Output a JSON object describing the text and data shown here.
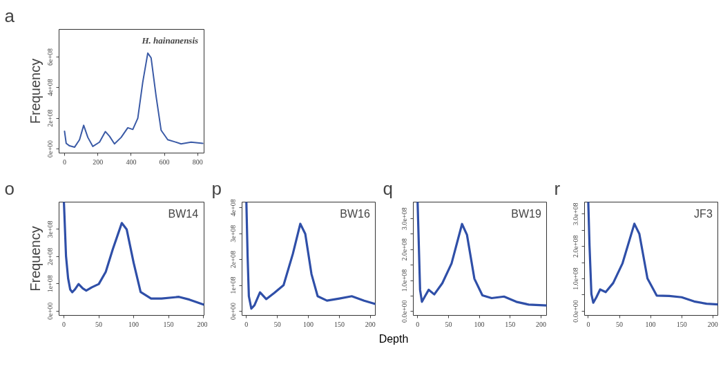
{
  "chart_data": [
    {
      "type": "line",
      "title": "a",
      "ylabel": "Frequency",
      "annotations": [
        "H. hainanensis"
      ],
      "grid": false,
      "xlim": [
        -33,
        838
      ],
      "ylim": [
        -27000000.0,
        780000000.0
      ],
      "xticks": [
        0,
        200,
        400,
        600,
        800
      ],
      "yticks": [
        {
          "value": 0,
          "label": "0e+00"
        },
        {
          "value": 200000000.0,
          "label": "2e+08"
        },
        {
          "value": 400000000.0,
          "label": "4e+08"
        },
        {
          "value": 600000000.0,
          "label": "6e+08"
        }
      ],
      "x": [
        0,
        10,
        30,
        60,
        90,
        115,
        140,
        170,
        210,
        245,
        270,
        300,
        340,
        380,
        410,
        440,
        470,
        500,
        520,
        550,
        580,
        620,
        660,
        700,
        760,
        830
      ],
      "series": [
        {
          "color": "#3a5aa6",
          "values": [
            115000000.0,
            36000000.0,
            20000000.0,
            11000000.0,
            60000000.0,
            154000000.0,
            75000000.0,
            16000000.0,
            44000000.0,
            113000000.0,
            83000000.0,
            33000000.0,
            75000000.0,
            138000000.0,
            127000000.0,
            200000000.0,
            437000000.0,
            625000000.0,
            594000000.0,
            343000000.0,
            122000000.0,
            60000000.0,
            47000000.0,
            33000000.0,
            44000000.0,
            36000000.0
          ]
        }
      ]
    },
    {
      "type": "line",
      "title": "o",
      "ylabel": "Frequency",
      "annotations": [
        "BW14"
      ],
      "grid": false,
      "xlim": [
        -7,
        201
      ],
      "ylim": [
        -16000000.0,
        400000000.0
      ],
      "xticks": [
        0,
        50,
        100,
        150,
        200
      ],
      "yticks": [
        {
          "value": 0,
          "label": "0e+00"
        },
        {
          "value": 100000000.0,
          "label": "1e+08"
        },
        {
          "value": 200000000.0,
          "label": "2e+08"
        },
        {
          "value": 300000000.0,
          "label": "3e+08"
        }
      ],
      "x": [
        0,
        3,
        6,
        9,
        12,
        16,
        21,
        27,
        32,
        40,
        50,
        60,
        70,
        83,
        90,
        100,
        110,
        125,
        140,
        165,
        180,
        200
      ],
      "series": [
        {
          "color": "#2f4fa8",
          "values": [
            400000000.0,
            202000000.0,
            120000000.0,
            79000000.0,
            69000000.0,
            80000000.0,
            99000000.0,
            83000000.0,
            75000000.0,
            87000000.0,
            99000000.0,
            144000000.0,
            226000000.0,
            323000000.0,
            300000000.0,
            177000000.0,
            70000000.0,
            46000000.0,
            46000000.0,
            52000000.0,
            42000000.0,
            24000000.0
          ]
        }
      ]
    },
    {
      "type": "line",
      "title": "p",
      "annotations": [
        "BW16"
      ],
      "grid": false,
      "xlim": [
        -7,
        208
      ],
      "ylim": [
        -16000000.0,
        422000000.0
      ],
      "xticks": [
        0,
        50,
        100,
        150,
        200
      ],
      "yticks": [
        {
          "value": 0,
          "label": "0e+00"
        },
        {
          "value": 100000000.0,
          "label": "1e+08"
        },
        {
          "value": 200000000.0,
          "label": "2e+08"
        },
        {
          "value": 300000000.0,
          "label": "3e+08"
        },
        {
          "value": 400000000.0,
          "label": "4e+08"
        }
      ],
      "x": [
        0,
        2,
        4,
        8,
        13,
        22,
        32,
        45,
        60,
        75,
        87,
        95,
        105,
        115,
        130,
        150,
        170,
        190,
        208
      ],
      "series": [
        {
          "color": "#2f4fa8",
          "values": [
            422000000.0,
            213000000.0,
            58000000.0,
            10000000.0,
            23000000.0,
            73000000.0,
            47000000.0,
            71000000.0,
            101000000.0,
            222000000.0,
            338000000.0,
            299000000.0,
            144000000.0,
            58000000.0,
            41000000.0,
            49000000.0,
            58000000.0,
            41000000.0,
            28000000.0
          ]
        }
      ]
    },
    {
      "type": "line",
      "title": "q",
      "xlabel": "Depth",
      "annotations": [
        "BW19"
      ],
      "grid": false,
      "xlim": [
        -7,
        209
      ],
      "ylim": [
        -13000000.0,
        354000000.0
      ],
      "xticks": [
        0,
        50,
        100,
        150,
        200
      ],
      "yticks": [
        {
          "value": 0,
          "label": "0.0e+00"
        },
        {
          "value": 50000000.0,
          "label": null
        },
        {
          "value": 100000000.0,
          "label": "1.0e+08"
        },
        {
          "value": 150000000.0,
          "label": null
        },
        {
          "value": 200000000.0,
          "label": "2.0e+08"
        },
        {
          "value": 250000000.0,
          "label": null
        },
        {
          "value": 300000000.0,
          "label": "3.0e+08"
        }
      ],
      "x": [
        0,
        2,
        4,
        7,
        12,
        18,
        27,
        40,
        55,
        72,
        80,
        92,
        105,
        120,
        140,
        160,
        180,
        209
      ],
      "series": [
        {
          "color": "#2f4fa8",
          "values": [
            354000000.0,
            212000000.0,
            70000000.0,
            31000000.0,
            49000000.0,
            70000000.0,
            55000000.0,
            91000000.0,
            155000000.0,
            283000000.0,
            248000000.0,
            106000000.0,
            52000000.0,
            43000000.0,
            48000000.0,
            31000000.0,
            22000000.0,
            19000000.0
          ]
        }
      ]
    },
    {
      "type": "line",
      "title": "r",
      "annotations": [
        "JF3"
      ],
      "grid": false,
      "xlim": [
        -6,
        208
      ],
      "ylim": [
        -13000000.0,
        337000000.0
      ],
      "xticks": [
        0,
        50,
        100,
        150,
        200
      ],
      "yticks": [
        {
          "value": 0,
          "label": "0.0e+00"
        },
        {
          "value": 50000000.0,
          "label": null
        },
        {
          "value": 100000000.0,
          "label": "1.0e+08"
        },
        {
          "value": 150000000.0,
          "label": null
        },
        {
          "value": 200000000.0,
          "label": "2.0e+08"
        },
        {
          "value": 250000000.0,
          "label": null
        },
        {
          "value": 300000000.0,
          "label": "3.0e+08"
        }
      ],
      "x": [
        0,
        2,
        5,
        8,
        13,
        19,
        28,
        40,
        55,
        74,
        82,
        95,
        110,
        130,
        150,
        170,
        190,
        208
      ],
      "series": [
        {
          "color": "#2f4fa8",
          "values": [
            337000000.0,
            202000000.0,
            53000000.0,
            26000000.0,
            43000000.0,
            67000000.0,
            59000000.0,
            87000000.0,
            148000000.0,
            270000000.0,
            239000000.0,
            101000000.0,
            48000000.0,
            47000000.0,
            43000000.0,
            30000000.0,
            23000000.0,
            21000000.0
          ]
        }
      ]
    }
  ]
}
